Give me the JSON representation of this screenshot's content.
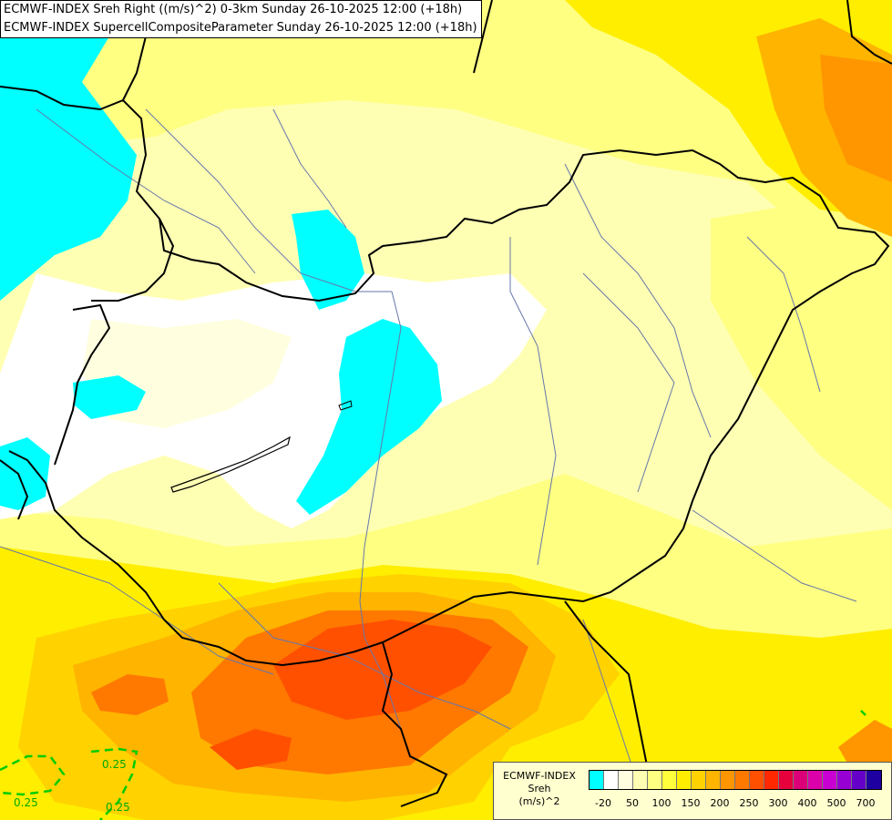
{
  "header": {
    "line1": "ECMWF-INDEX Sreh Right ((m/s)^2) 0-3km Sunday 26-10-2025 12:00 (+18h)",
    "line2": "ECMWF-INDEX SupercellCompositeParameter Sunday 26-10-2025 12:00 (+18h)"
  },
  "contour_labels": [
    "0.25",
    "0.25",
    "0.25"
  ],
  "legend": {
    "name_line1": "ECMWF-INDEX",
    "name_line2": "Sreh",
    "name_line3": "(m/s)^2",
    "colors": [
      "#00ffff",
      "#ffffff",
      "#ffffe0",
      "#ffffb4",
      "#ffff82",
      "#ffff3c",
      "#ffee00",
      "#ffd200",
      "#ffb400",
      "#ff9600",
      "#ff7800",
      "#ff5000",
      "#ff2800",
      "#e6003c",
      "#dc0078",
      "#dc00aa",
      "#c800d2",
      "#9600d2",
      "#6400c8",
      "#1e00a0"
    ],
    "ticks": [
      "-20",
      "50",
      "100",
      "150",
      "200",
      "250",
      "300",
      "400",
      "500",
      "700"
    ]
  },
  "colors": {
    "cyan": "#00ffff",
    "white": "#ffffff",
    "pale_yellow": "#ffffc0",
    "yellow": "#ffff82",
    "gold": "#ffd700",
    "orange": "#ffa500",
    "red_orange": "#ff6a1a",
    "red": "#ff2200",
    "contour_green": "#00cc00",
    "border": "#000000",
    "river": "#6677aa"
  }
}
